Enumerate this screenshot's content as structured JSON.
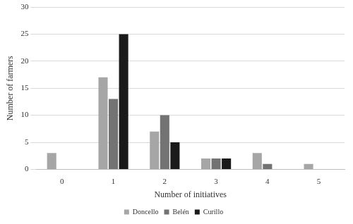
{
  "chart_data": {
    "type": "bar",
    "x_label": "Number of initiatives",
    "y_label": "Number of farmers",
    "categories": [
      "0",
      "1",
      "2",
      "3",
      "4",
      "5"
    ],
    "series": [
      {
        "name": "Doncello",
        "color": "#a6a6a6",
        "values": [
          3,
          17,
          7,
          2,
          3,
          1
        ]
      },
      {
        "name": "Belén",
        "color": "#737373",
        "values": [
          0,
          13,
          10,
          2,
          1,
          0
        ]
      },
      {
        "name": "Curillo",
        "color": "#1a1a1a",
        "values": [
          0,
          25,
          5,
          2,
          0,
          0
        ]
      }
    ],
    "ylim": [
      0,
      30
    ],
    "yticks": [
      0,
      5,
      10,
      15,
      20,
      25,
      30
    ],
    "grid": true,
    "legend": "bottom"
  }
}
